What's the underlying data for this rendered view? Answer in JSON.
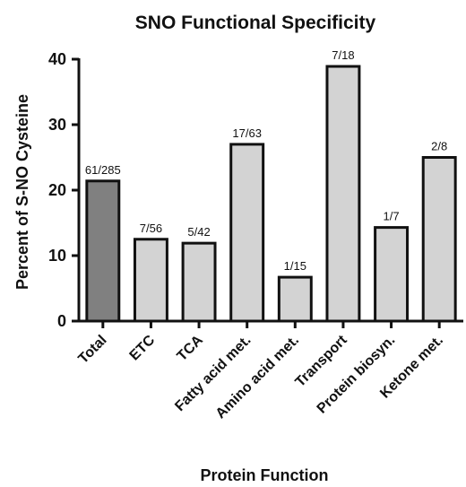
{
  "chart_data": {
    "type": "bar",
    "title": "SNO Functional Specificity",
    "xlabel": "Protein Function",
    "ylabel": "Percent of S-NO Cysteine",
    "ylim": [
      0,
      40
    ],
    "yticks": [
      "0",
      "10",
      "20",
      "30",
      "40"
    ],
    "categories": [
      "Total",
      "ETC",
      "TCA",
      "Fatty acid met.",
      "Amino acid met.",
      "Transport",
      "Protein biosyn.",
      "Ketone met."
    ],
    "values": [
      21.4,
      12.5,
      11.9,
      27.0,
      6.7,
      38.9,
      14.3,
      25.0
    ],
    "data_labels": [
      "61/285",
      "7/56",
      "5/42",
      "17/63",
      "1/15",
      "7/18",
      "1/7",
      "2/8"
    ],
    "bar_colors": [
      "#808080",
      "#d3d3d3",
      "#d3d3d3",
      "#d3d3d3",
      "#d3d3d3",
      "#d3d3d3",
      "#d3d3d3",
      "#d3d3d3"
    ],
    "bar_outline": "#111111",
    "grid": false,
    "legend": "none"
  }
}
